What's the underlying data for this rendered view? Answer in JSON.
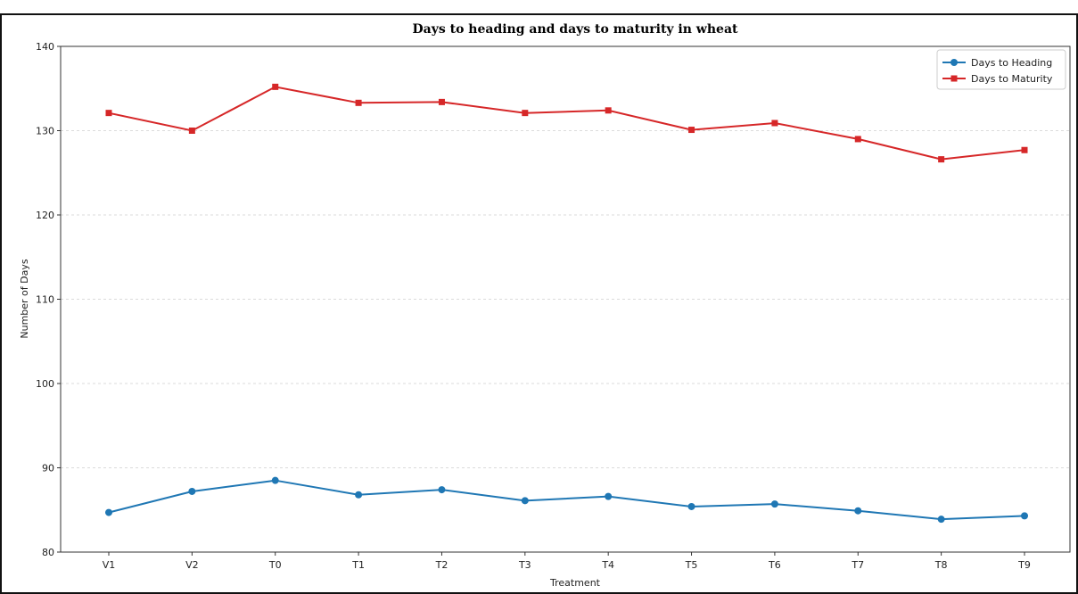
{
  "chart_data": {
    "type": "line",
    "title": "Days to heading and days to maturity in wheat",
    "xlabel": "Treatment",
    "ylabel": "Number of Days",
    "categories": [
      "V1",
      "V2",
      "T0",
      "T1",
      "T2",
      "T3",
      "T4",
      "T5",
      "T6",
      "T7",
      "T8",
      "T9"
    ],
    "ylim": [
      80,
      140
    ],
    "yticks": [
      "80",
      "90",
      "100",
      "110",
      "120",
      "130",
      "140"
    ],
    "grid": "horizontal dashed",
    "legend_position": "top-right",
    "series": [
      {
        "name": "Days to Heading",
        "color": "#1f77b4",
        "marker": "circle",
        "values": [
          84.7,
          87.2,
          88.5,
          86.8,
          87.4,
          86.1,
          86.6,
          85.4,
          85.7,
          84.9,
          83.9,
          84.3
        ]
      },
      {
        "name": "Days to Maturity",
        "color": "#d62728",
        "marker": "square",
        "values": [
          132.1,
          130.0,
          135.2,
          133.3,
          133.4,
          132.1,
          132.4,
          130.1,
          130.9,
          129.0,
          126.6,
          127.7
        ]
      }
    ]
  }
}
